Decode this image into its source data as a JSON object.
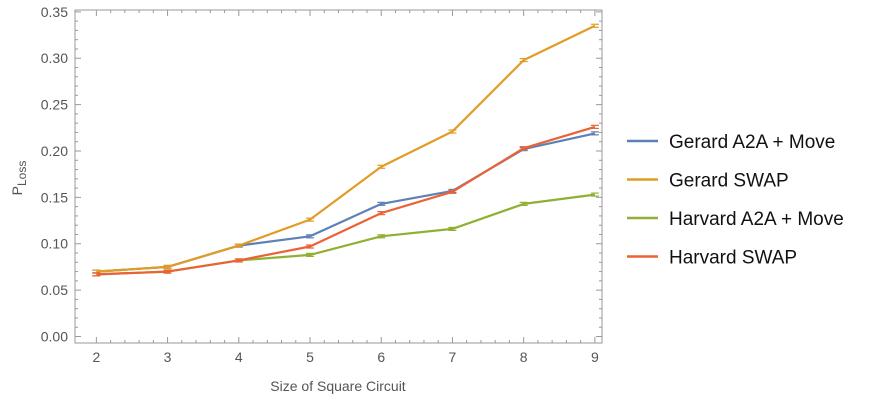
{
  "chart_data": {
    "type": "line",
    "title": "",
    "xlabel": "Size of Square Circuit",
    "ylabel": {
      "main": "P",
      "subscript": "Loss"
    },
    "x": [
      2,
      3,
      4,
      5,
      6,
      7,
      8,
      9
    ],
    "xticks": [
      "2",
      "3",
      "4",
      "5",
      "6",
      "7",
      "8",
      "9"
    ],
    "xlim": [
      1.7,
      9.1
    ],
    "ylim": [
      -0.007,
      0.352
    ],
    "yticks": [
      "0.00",
      "0.05",
      "0.10",
      "0.15",
      "0.20",
      "0.25",
      "0.30",
      "0.35"
    ],
    "grid": false,
    "legend_position": "right",
    "series": [
      {
        "name": "Gerard A2A + Move",
        "color": "#5e81b5",
        "values": [
          0.07,
          0.075,
          0.098,
          0.108,
          0.143,
          0.157,
          0.202,
          0.219
        ]
      },
      {
        "name": "Gerard SWAP",
        "color": "#e19c24",
        "values": [
          0.07,
          0.075,
          0.098,
          0.126,
          0.183,
          0.221,
          0.298,
          0.335
        ]
      },
      {
        "name": "Harvard A2A + Move",
        "color": "#8fb032",
        "values": [
          0.067,
          0.07,
          0.082,
          0.088,
          0.108,
          0.116,
          0.143,
          0.153
        ]
      },
      {
        "name": "Harvard SWAP",
        "color": "#eb6235",
        "values": [
          0.067,
          0.07,
          0.082,
          0.097,
          0.133,
          0.156,
          0.203,
          0.226
        ]
      }
    ]
  }
}
